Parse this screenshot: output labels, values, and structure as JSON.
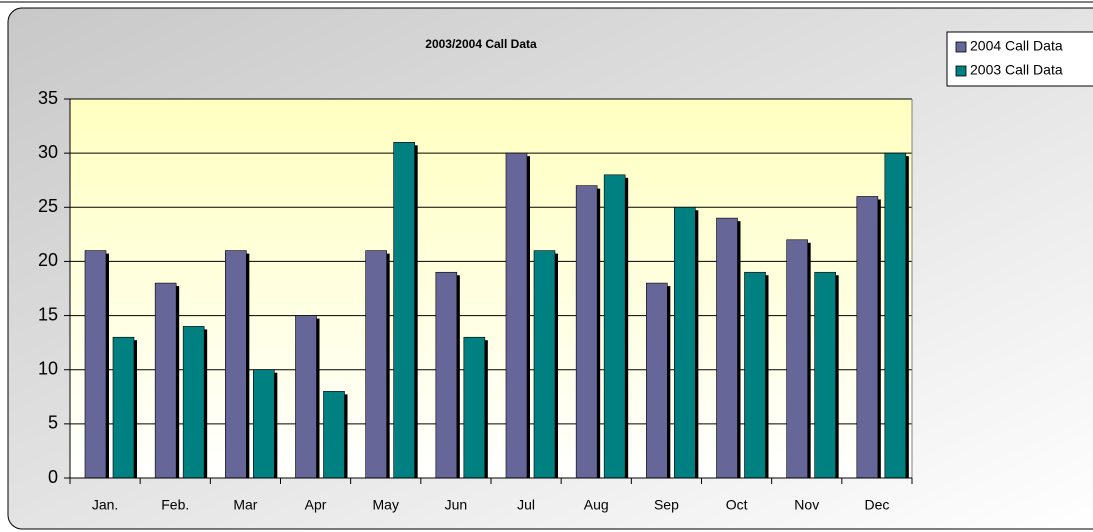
{
  "chart_data": {
    "type": "bar",
    "title": "2003/2004 Call Data",
    "categories": [
      "Jan.",
      "Feb.",
      "Mar",
      "Apr",
      "May",
      "Jun",
      "Jul",
      "Aug",
      "Sep",
      "Oct",
      "Nov",
      "Dec"
    ],
    "series": [
      {
        "name": "2004 Call Data",
        "color": "#666699",
        "values": [
          21,
          18,
          21,
          15,
          21,
          19,
          30,
          27,
          18,
          24,
          22,
          26
        ]
      },
      {
        "name": "2003 Call Data",
        "color": "#008080",
        "values": [
          13,
          14,
          10,
          8,
          31,
          13,
          21,
          28,
          25,
          19,
          19,
          30
        ]
      }
    ],
    "ylim": [
      0,
      35
    ],
    "yticks": [
      0,
      5,
      10,
      15,
      20,
      25,
      30,
      35
    ],
    "grid": true,
    "legend": "top-right"
  }
}
